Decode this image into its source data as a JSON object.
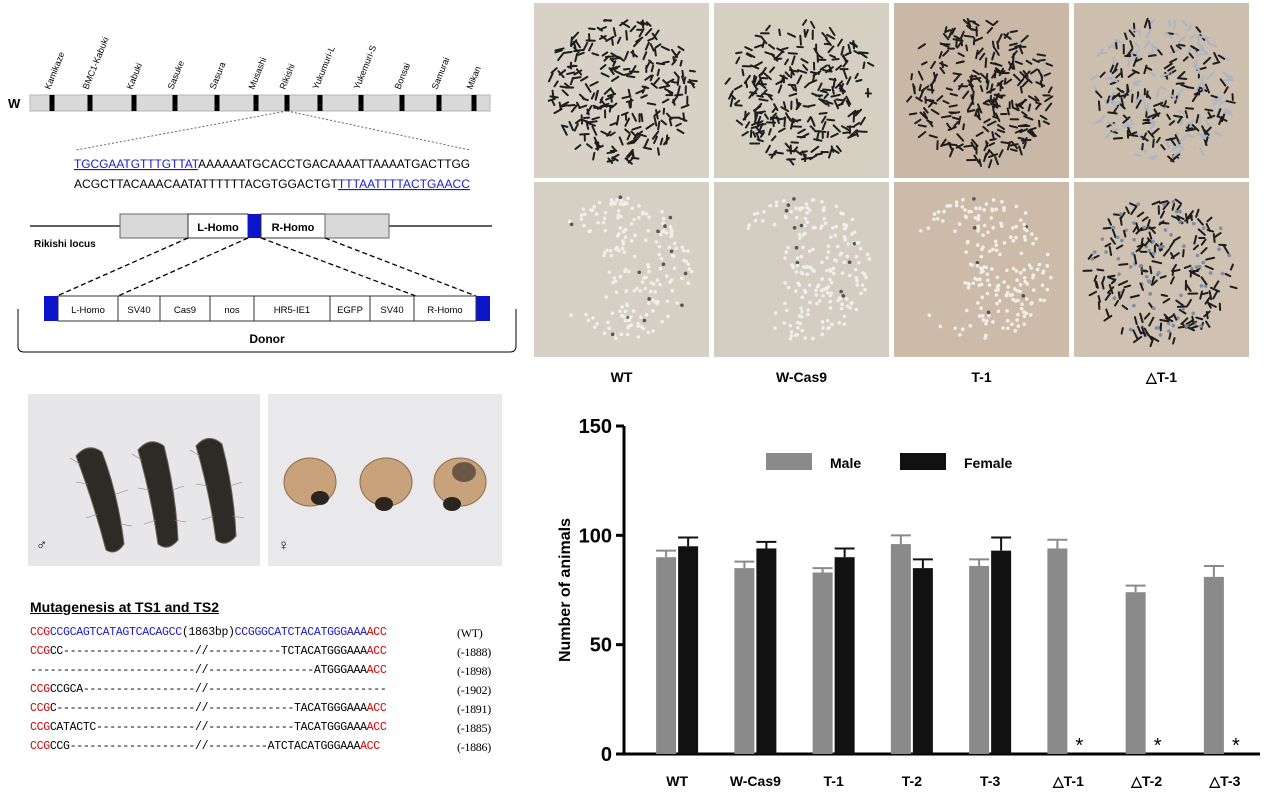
{
  "diagram": {
    "chrom_label": "W",
    "markers": [
      "Kamikaze",
      "BMC1-Kabuki",
      "Kabuki",
      "Sasuke",
      "Sasura",
      "Musashi",
      "Rikishi",
      "Yukumuri-L",
      "Yukemuri-S",
      "Bonsai",
      "Samurai",
      "Mikan"
    ],
    "seq_top_underlined": "TGCGAATGTTTGTTAT",
    "seq_top_rest": "AAAAAATGCACCTGACAAAATTAAAATGACTTGG",
    "seq_bottom_rest": "ACGCTTACAAACAATATTTTTTACGTGGACTGT",
    "seq_bottom_underlined": "TTTAATTTTACTGAACC",
    "locus_label": "Rikishi locus",
    "locus_parts": [
      "L-Homo",
      "R-Homo"
    ],
    "donor_parts": [
      "L-Homo",
      "SV40",
      "Cas9",
      "nos",
      "HR5-IE1",
      "EGFP",
      "SV40",
      "R-Homo"
    ],
    "donor_label": "Donor"
  },
  "photos": {
    "columns": [
      "WT",
      "W-Cas9",
      "T-1",
      "△T-1"
    ]
  },
  "larvae": {
    "male_symbol": "♂",
    "female_symbol": "♀"
  },
  "mutagenesis": {
    "title": "Mutagenesis at TS1 and TS2",
    "rows": [
      {
        "pre": "CCG",
        "blue1": "CCGCAGTCATAGTCACAGCC",
        "mid": "(1863bp)",
        "blue2": "CCGGGCATCTACATGGGAAA",
        "post": "ACC",
        "label": "(WT)"
      },
      {
        "pre": "CCG",
        "body": "CC--------------------//-----------TCTACATGGGAAA",
        "post": "ACC",
        "label": "(-1888)"
      },
      {
        "pre": "",
        "body": "-------------------------//----------------ATGGGAAA",
        "post": "ACC",
        "label": "(-1898)"
      },
      {
        "pre": "CCG",
        "body": "CCGCA-----------------//---------------------------",
        "post": "",
        "label": "(-1902)"
      },
      {
        "pre": "CCG",
        "body": "C---------------------//-------------TACATGGGAAA",
        "post": "ACC",
        "label": "(-1891)"
      },
      {
        "pre": "CCG",
        "body": "CATACTC---------------//-------------TACATGGGAAA",
        "post": "ACC",
        "label": "(-1885)"
      },
      {
        "pre": "CCG",
        "body": "CCG-------------------//---------ATCTACATGGGAAA",
        "post": "ACC",
        "label": "(-1886)"
      }
    ]
  },
  "chart_data": {
    "type": "bar",
    "categories": [
      "WT",
      "W-Cas9",
      "T-1",
      "T-2",
      "T-3",
      "△T-1",
      "△T-2",
      "△T-3"
    ],
    "series": [
      {
        "name": "Male",
        "color": "#8a8a8a",
        "values": [
          90,
          85,
          83,
          96,
          86,
          94,
          74,
          81
        ],
        "errors": [
          3,
          3,
          2,
          4,
          3,
          4,
          3,
          5
        ]
      },
      {
        "name": "Female",
        "color": "#111111",
        "values": [
          95,
          94,
          90,
          85,
          93,
          0,
          0,
          0
        ],
        "errors": [
          4,
          3,
          4,
          4,
          6,
          0,
          0,
          0
        ]
      }
    ],
    "ylabel": "Number  of animals",
    "ylim": [
      0,
      150
    ],
    "yticks": [
      0,
      50,
      100,
      150
    ],
    "absent_marker": "*",
    "legend_position": "top"
  }
}
